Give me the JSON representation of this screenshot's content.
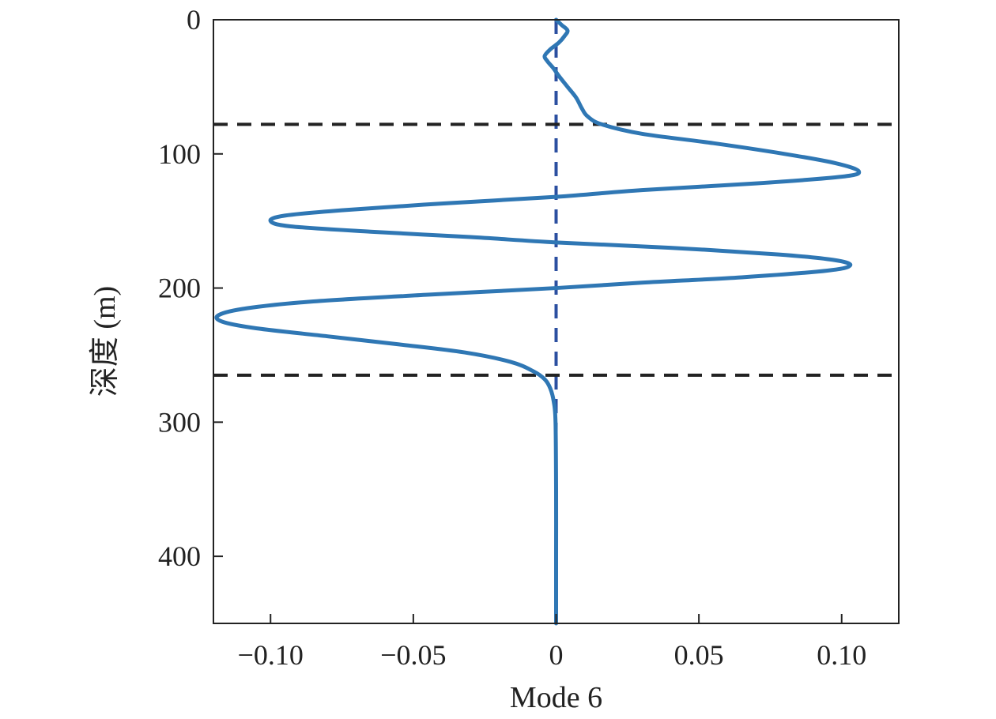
{
  "chart_data": {
    "type": "line",
    "title": "",
    "xlabel": "Mode 6",
    "ylabel": "深度 (m)",
    "xlim": [
      -0.12,
      0.12
    ],
    "ylim": [
      0,
      450
    ],
    "y_inverted": true,
    "grid": false,
    "xticks": [
      {
        "value": -0.1,
        "label": "−0.10"
      },
      {
        "value": -0.05,
        "label": "−0.05"
      },
      {
        "value": 0,
        "label": "0"
      },
      {
        "value": 0.05,
        "label": "0.05"
      },
      {
        "value": 0.1,
        "label": "0.10"
      }
    ],
    "yticks": [
      {
        "value": 0,
        "label": "0"
      },
      {
        "value": 100,
        "label": "100"
      },
      {
        "value": 200,
        "label": "200"
      },
      {
        "value": 300,
        "label": "300"
      },
      {
        "value": 400,
        "label": "400"
      }
    ],
    "series": [
      {
        "color": "#2f77b4",
        "points": [
          {
            "depth": 0,
            "value": 0.0
          },
          {
            "depth": 4,
            "value": 0.002
          },
          {
            "depth": 8,
            "value": 0.004
          },
          {
            "depth": 12,
            "value": 0.003
          },
          {
            "depth": 17,
            "value": 0.001
          },
          {
            "depth": 22,
            "value": -0.002
          },
          {
            "depth": 27,
            "value": -0.004
          },
          {
            "depth": 31,
            "value": -0.003
          },
          {
            "depth": 36,
            "value": -0.001
          },
          {
            "depth": 42,
            "value": 0.001
          },
          {
            "depth": 50,
            "value": 0.004
          },
          {
            "depth": 58,
            "value": 0.007
          },
          {
            "depth": 66,
            "value": 0.009
          },
          {
            "depth": 72,
            "value": 0.011
          },
          {
            "depth": 78,
            "value": 0.016
          },
          {
            "depth": 85,
            "value": 0.03
          },
          {
            "depth": 92,
            "value": 0.055
          },
          {
            "depth": 100,
            "value": 0.08
          },
          {
            "depth": 107,
            "value": 0.098
          },
          {
            "depth": 113,
            "value": 0.106
          },
          {
            "depth": 117,
            "value": 0.1
          },
          {
            "depth": 122,
            "value": 0.07
          },
          {
            "depth": 127,
            "value": 0.03
          },
          {
            "depth": 132,
            "value": 0.0
          },
          {
            "depth": 137,
            "value": -0.04
          },
          {
            "depth": 142,
            "value": -0.075
          },
          {
            "depth": 146,
            "value": -0.095
          },
          {
            "depth": 150,
            "value": -0.1
          },
          {
            "depth": 154,
            "value": -0.093
          },
          {
            "depth": 158,
            "value": -0.065
          },
          {
            "depth": 162,
            "value": -0.03
          },
          {
            "depth": 166,
            "value": 0.0
          },
          {
            "depth": 170,
            "value": 0.04
          },
          {
            "depth": 175,
            "value": 0.078
          },
          {
            "depth": 179,
            "value": 0.097
          },
          {
            "depth": 183,
            "value": 0.103
          },
          {
            "depth": 187,
            "value": 0.095
          },
          {
            "depth": 192,
            "value": 0.065
          },
          {
            "depth": 196,
            "value": 0.03
          },
          {
            "depth": 200,
            "value": 0.0
          },
          {
            "depth": 205,
            "value": -0.045
          },
          {
            "depth": 210,
            "value": -0.085
          },
          {
            "depth": 215,
            "value": -0.108
          },
          {
            "depth": 220,
            "value": -0.118
          },
          {
            "depth": 225,
            "value": -0.117
          },
          {
            "depth": 230,
            "value": -0.105
          },
          {
            "depth": 236,
            "value": -0.08
          },
          {
            "depth": 242,
            "value": -0.055
          },
          {
            "depth": 248,
            "value": -0.032
          },
          {
            "depth": 255,
            "value": -0.016
          },
          {
            "depth": 262,
            "value": -0.008
          },
          {
            "depth": 268,
            "value": -0.004
          },
          {
            "depth": 275,
            "value": -0.002
          },
          {
            "depth": 285,
            "value": -0.0008
          },
          {
            "depth": 300,
            "value": -0.0002
          },
          {
            "depth": 350,
            "value": 0.0
          },
          {
            "depth": 400,
            "value": 0.0
          },
          {
            "depth": 450,
            "value": 0.0
          }
        ]
      }
    ],
    "reference_lines": [
      {
        "orientation": "vertical",
        "x": 0,
        "color": "#2b4fa0",
        "style": "dashed"
      },
      {
        "orientation": "horizontal",
        "y": 78,
        "color": "#222222",
        "style": "dashed"
      },
      {
        "orientation": "horizontal",
        "y": 265,
        "color": "#222222",
        "style": "dashed"
      }
    ]
  }
}
